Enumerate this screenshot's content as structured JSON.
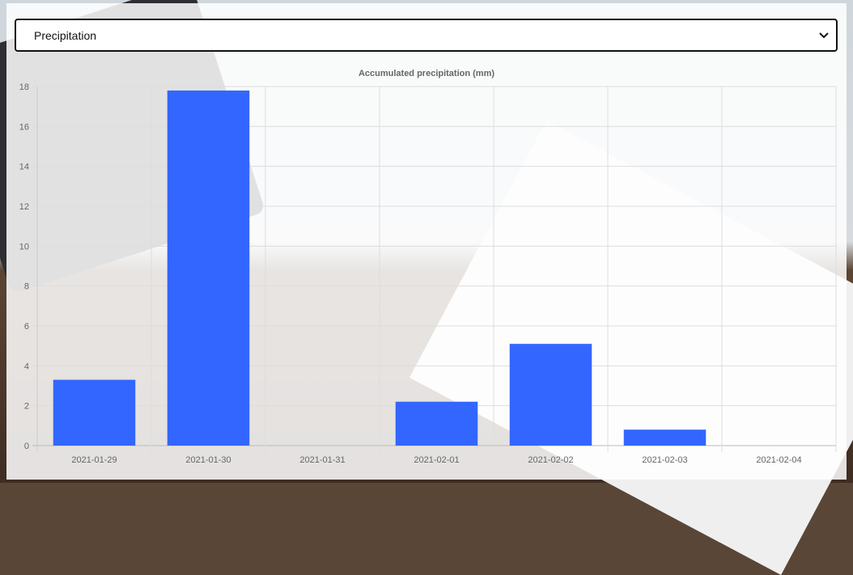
{
  "selector": {
    "selected": "Precipitation"
  },
  "colors": {
    "bar": "#3366ff",
    "grid": "#dddddd",
    "text": "#666666"
  },
  "chart_data": {
    "type": "bar",
    "title": "Accumulated precipitation (mm)",
    "categories": [
      "2021-01-29",
      "2021-01-30",
      "2021-01-31",
      "2021-02-01",
      "2021-02-02",
      "2021-02-03",
      "2021-02-04"
    ],
    "values": [
      3.3,
      17.8,
      0,
      2.2,
      5.1,
      0.8,
      0
    ],
    "ylim": [
      0,
      18
    ],
    "yticks": [
      0,
      2,
      4,
      6,
      8,
      10,
      12,
      14,
      16,
      18
    ],
    "grid": true,
    "legend": "none"
  }
}
